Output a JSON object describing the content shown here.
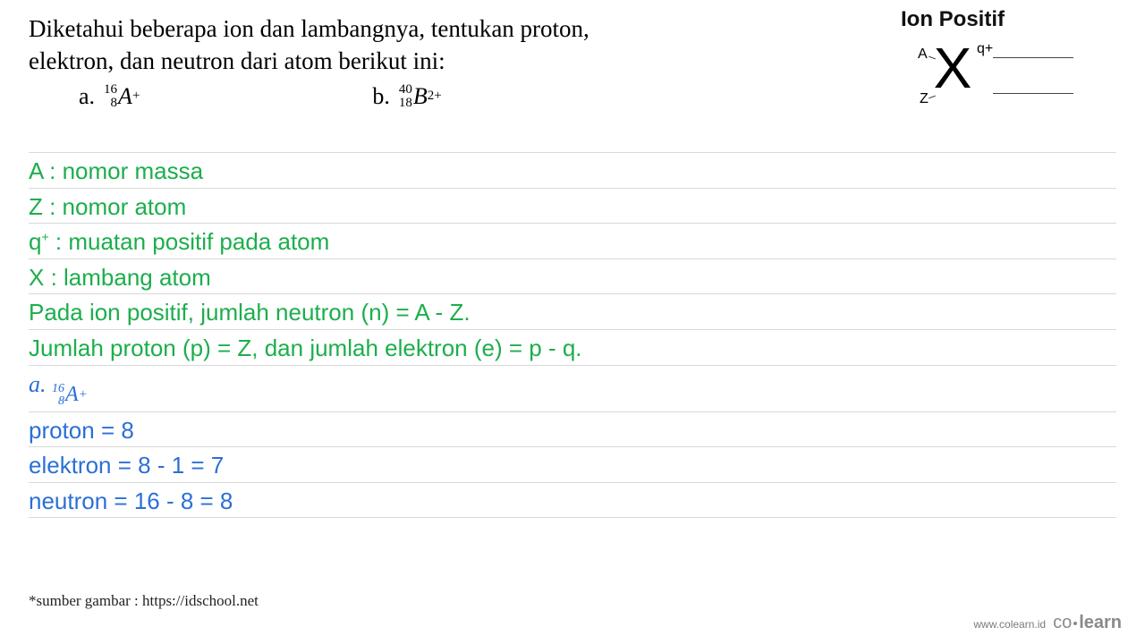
{
  "question": {
    "line1": "Diketahui beberapa ion dan lambangnya, tentukan proton,",
    "line2": "elektron, dan neutron dari atom berikut ini:",
    "opt_a_label": "a.",
    "opt_a_top": "16",
    "opt_a_bottom": "8",
    "opt_a_elem": "A",
    "opt_a_charge": "+",
    "opt_b_label": "b.",
    "opt_b_top": "40",
    "opt_b_bottom": "18",
    "opt_b_elem": "B",
    "opt_b_charge": "2+"
  },
  "ion": {
    "title": "Ion Positif",
    "A": "A",
    "Z": "Z",
    "X": "X",
    "q": "q+"
  },
  "rows": {
    "r1": "A : nomor massa",
    "r2": "Z : nomor atom",
    "r3_a": "q",
    "r3_b": " : muatan positif pada atom",
    "r4": "X : lambang atom",
    "r5": "Pada ion positif, jumlah neutron (n) = A - Z.",
    "r6": "Jumlah proton (p) = Z, dan jumlah elektron (e) = p - q.",
    "r7_label": "a. ",
    "r7_top": "16",
    "r7_bottom": "8",
    "r7_elem": "A",
    "r7_charge": "+",
    "r8": "proton = 8",
    "r9": "elektron = 8 - 1 = 7",
    "r10": "neutron = 16 - 8 = 8"
  },
  "credit": "*sumber gambar : https://idschool.net",
  "brand_url": "www.colearn.id",
  "brand_logo_a": "co",
  "brand_logo_b": "learn",
  "colors": {
    "green": "#1cae4c",
    "blue": "#2b6fd6",
    "line": "#d9d9d9",
    "text": "#000000",
    "brand": "#8a8a8a"
  }
}
